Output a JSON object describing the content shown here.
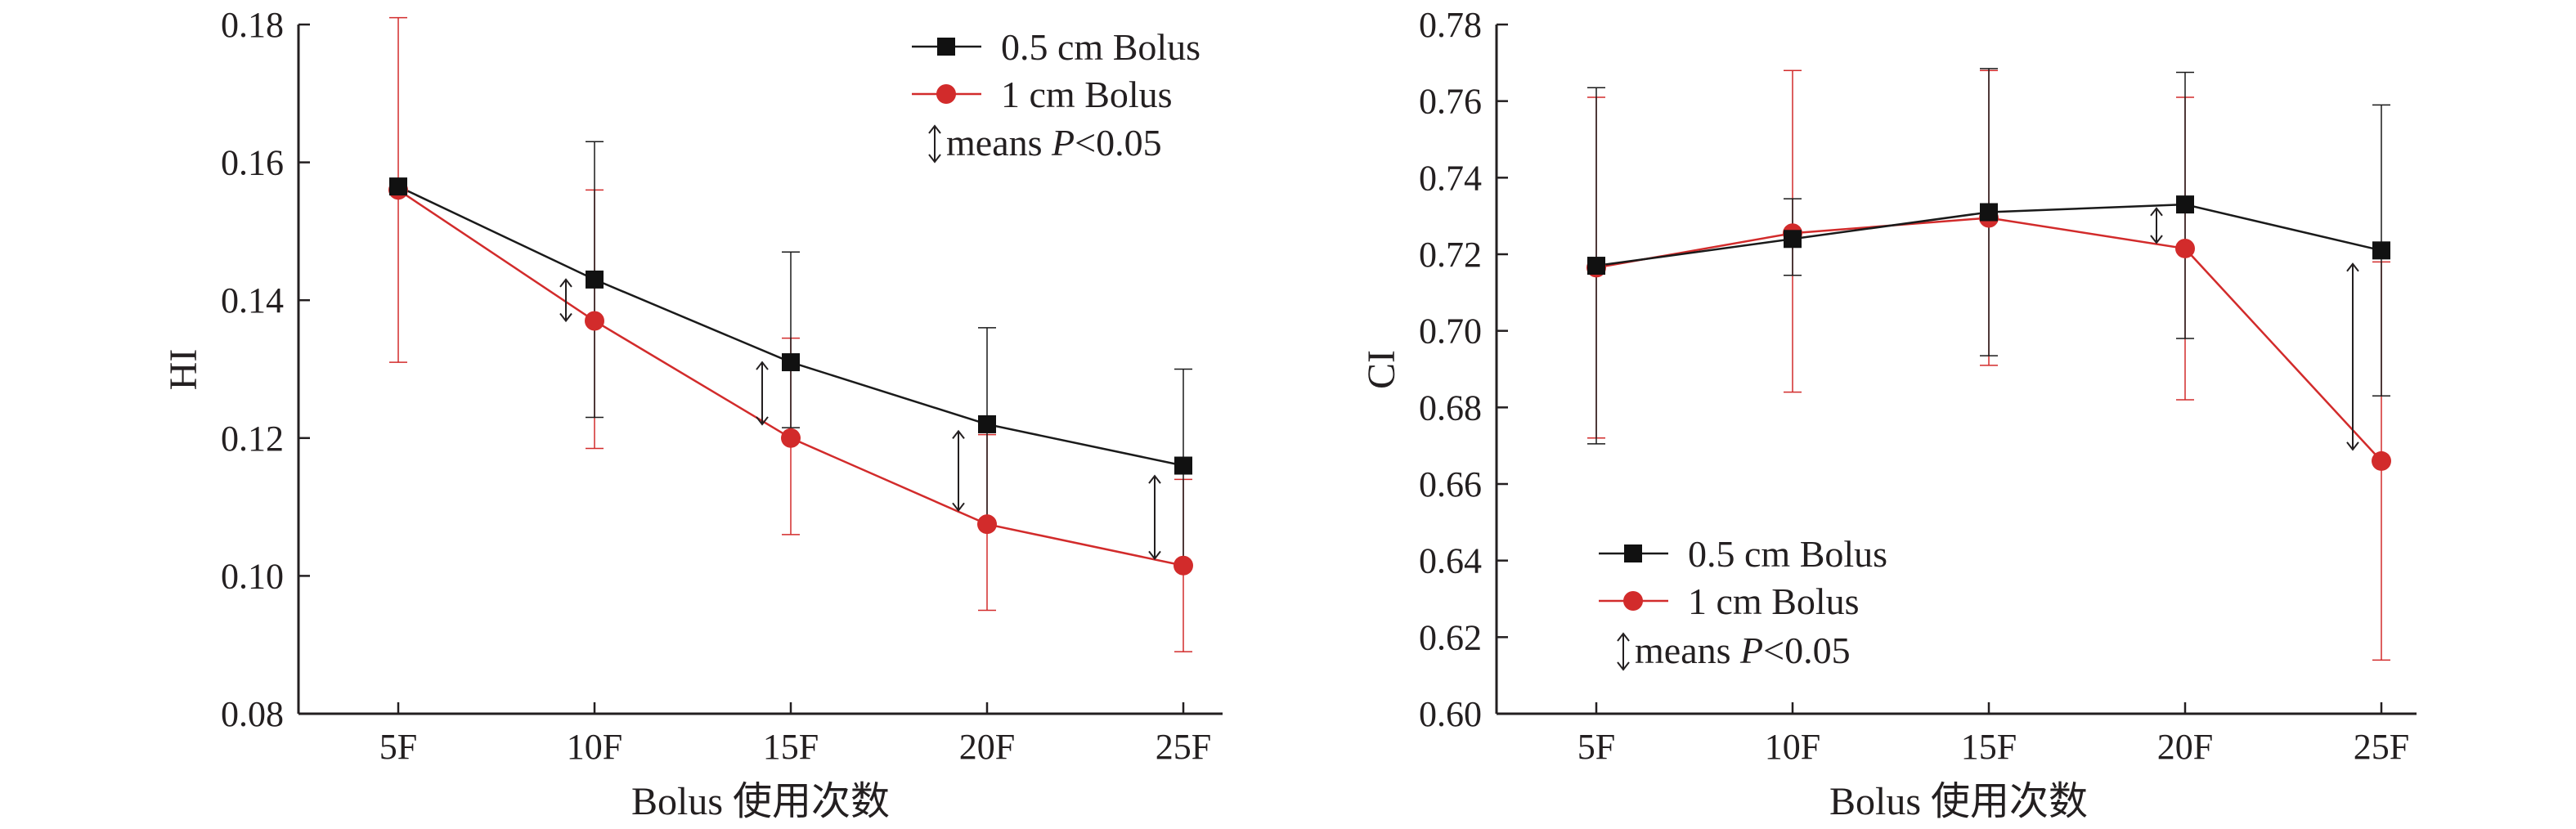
{
  "colors": {
    "axis": "#231f20",
    "series_black": "#1a1a1a",
    "series_red": "#d22b2b"
  },
  "chart_data": [
    {
      "type": "line",
      "categories": [
        "5F",
        "10F",
        "15F",
        "20F",
        "25F"
      ],
      "xlabel": "Bolus 使用次数",
      "ylabel": "HI",
      "ylim": [
        0.08,
        0.18
      ],
      "yticks": [
        "0.08",
        "0.10",
        "0.12",
        "0.14",
        "0.16",
        "0.18"
      ],
      "legend_position": "top-right",
      "legend_note_prefix": "means",
      "legend_note_p": "P",
      "legend_note_suffix": "<0.05",
      "series": [
        {
          "name": "0.5 cm Bolus",
          "color": "#1a1a1a",
          "marker": "square",
          "values": [
            0.1565,
            0.143,
            0.131,
            0.122,
            0.116
          ],
          "err_low": [
            0.1555,
            0.123,
            0.1215,
            0.108,
            0.102
          ],
          "err_high": [
            0.1575,
            0.163,
            0.147,
            0.136,
            0.13
          ]
        },
        {
          "name": "1 cm Bolus",
          "color": "#d22b2b",
          "marker": "circle",
          "values": [
            0.156,
            0.137,
            0.12,
            0.1075,
            0.1015
          ],
          "err_low": [
            0.131,
            0.1185,
            0.106,
            0.095,
            0.089
          ],
          "err_high": [
            0.181,
            0.156,
            0.1345,
            0.1205,
            0.114
          ]
        }
      ],
      "significance_markers": [
        {
          "category": "10F",
          "from": 0.143,
          "to": 0.137
        },
        {
          "category": "15F",
          "from": 0.131,
          "to": 0.122
        },
        {
          "category": "20F",
          "from": 0.121,
          "to": 0.1095
        },
        {
          "category": "25F",
          "from": 0.1145,
          "to": 0.1025
        }
      ]
    },
    {
      "type": "line",
      "categories": [
        "5F",
        "10F",
        "15F",
        "20F",
        "25F"
      ],
      "xlabel": "Bolus 使用次数",
      "ylabel": "CI",
      "ylim": [
        0.6,
        0.78
      ],
      "yticks": [
        "0.60",
        "0.62",
        "0.64",
        "0.66",
        "0.68",
        "0.70",
        "0.72",
        "0.74",
        "0.76",
        "0.78"
      ],
      "legend_position": "bottom-left",
      "legend_note_prefix": "means",
      "legend_note_p": "P",
      "legend_note_suffix": "<0.05",
      "series": [
        {
          "name": "0.5 cm Bolus",
          "color": "#1a1a1a",
          "marker": "square",
          "values": [
            0.717,
            0.724,
            0.731,
            0.733,
            0.721
          ],
          "err_low": [
            0.6705,
            0.7145,
            0.6935,
            0.698,
            0.683
          ],
          "err_high": [
            0.7635,
            0.7345,
            0.7685,
            0.7675,
            0.759
          ]
        },
        {
          "name": "1 cm Bolus",
          "color": "#d22b2b",
          "marker": "circle",
          "values": [
            0.7165,
            0.7255,
            0.7295,
            0.7215,
            0.666
          ],
          "err_low": [
            0.672,
            0.684,
            0.691,
            0.682,
            0.614
          ],
          "err_high": [
            0.761,
            0.768,
            0.768,
            0.761,
            0.718
          ]
        }
      ],
      "significance_markers": [
        {
          "category": "20F",
          "from": 0.732,
          "to": 0.723
        },
        {
          "category": "25F",
          "from": 0.7175,
          "to": 0.669
        }
      ]
    }
  ]
}
